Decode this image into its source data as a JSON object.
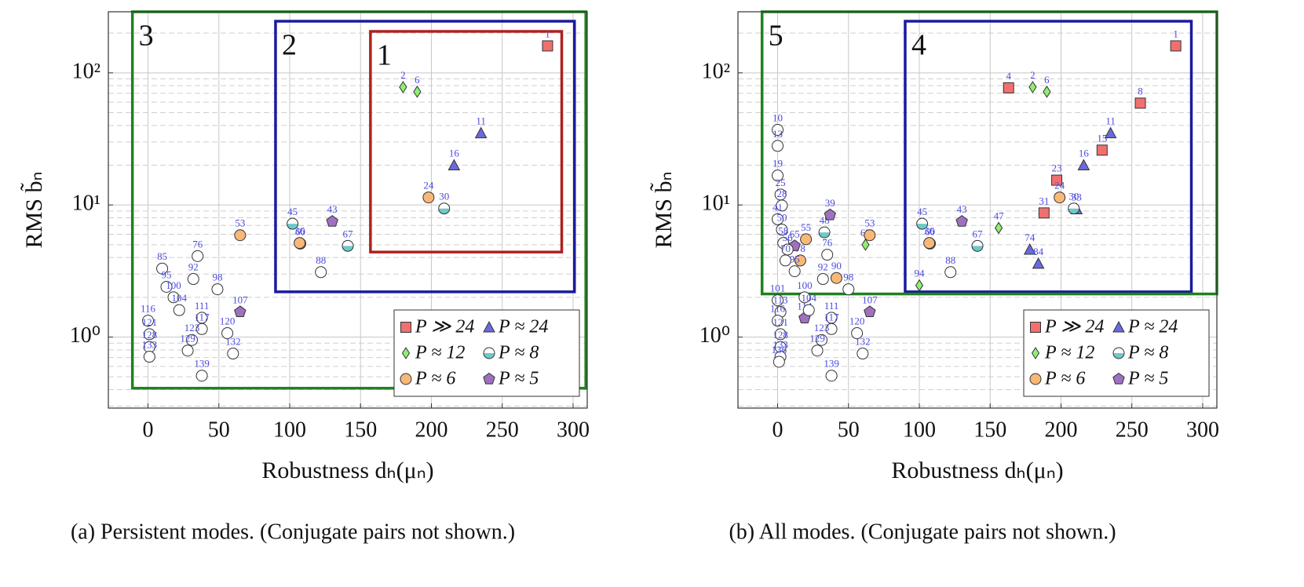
{
  "chart_data": [
    {
      "type": "scatter",
      "caption": "(a) Persistent modes. (Conjugate pairs not shown.)",
      "xlabel": "Robustness dₕ(μₙ)",
      "ylabel": "RMS b̃ₙ",
      "xlim": [
        -28,
        310
      ],
      "ylim": [
        0.29,
        290
      ],
      "log_y": true,
      "grid": true,
      "minor_grid": true,
      "xticks": [
        0,
        50,
        100,
        150,
        200,
        250,
        300
      ],
      "yticks": [
        {
          "value": 1,
          "label": "10⁰"
        },
        {
          "value": 10,
          "label": "10¹"
        },
        {
          "value": 100,
          "label": "10²"
        }
      ],
      "legend": "lower right",
      "regions": [
        {
          "label": "1",
          "color": "#b02020",
          "x": [
            157,
            292
          ],
          "y": [
            4.4,
            206
          ]
        },
        {
          "label": "2",
          "color": "#1a1aa0",
          "x": [
            90,
            301
          ],
          "y": [
            2.2,
            246
          ]
        },
        {
          "label": "3",
          "color": "#208020",
          "x": [
            -11,
            309
          ],
          "y": [
            0.41,
            290
          ]
        }
      ],
      "series": [
        {
          "name": "P ≫ 24",
          "color": "#f07070",
          "marker": "square",
          "x": [
            282
          ],
          "values": [
            160
          ],
          "point_labels": [
            1
          ]
        },
        {
          "name": "P ≈ 24",
          "color": "#6a6ae0",
          "marker": "triangle",
          "x": [
            235,
            216
          ],
          "values": [
            35,
            20
          ],
          "point_labels": [
            11,
            16
          ]
        },
        {
          "name": "P ≈ 12",
          "color": "#90ee70",
          "marker": "diamond",
          "x": [
            180,
            190
          ],
          "values": [
            78,
            72
          ],
          "point_labels": [
            2,
            6
          ]
        },
        {
          "name": "P ≈ 8",
          "color": "#70c8c8",
          "marker": "half-circle",
          "x": [
            209,
            102,
            107.5,
            141
          ],
          "values": [
            9.4,
            7.2,
            5.1,
            4.9
          ],
          "point_labels": [
            30,
            45,
            60,
            67
          ]
        },
        {
          "name": "P ≈ 6",
          "color": "#f8b878",
          "marker": "circle",
          "x": [
            198,
            65,
            107
          ],
          "values": [
            11.4,
            5.9,
            5.15
          ],
          "point_labels": [
            24,
            53,
            36
          ]
        },
        {
          "name": "P ≈ 5",
          "color": "#a070c0",
          "marker": "pentagon",
          "x": [
            130,
            65
          ],
          "values": [
            7.5,
            1.55
          ],
          "point_labels": [
            43,
            107
          ]
        },
        {
          "color": "#ffffff",
          "marker": "circle",
          "x": [
            10,
            35,
            32,
            49,
            122,
            13,
            18,
            22,
            38,
            38,
            0,
            1,
            56,
            31,
            1,
            28,
            60,
            1,
            38
          ],
          "values": [
            3.3,
            4.1,
            2.75,
            2.3,
            3.1,
            2.4,
            2.0,
            1.6,
            1.4,
            1.15,
            1.33,
            1.05,
            1.07,
            0.95,
            0.84,
            0.79,
            0.75,
            0.71,
            0.51
          ],
          "point_labels": [
            85,
            76,
            92,
            98,
            88,
            95,
            100,
            104,
            111,
            117,
            116,
            121,
            120,
            123,
            128,
            129,
            132,
            133,
            139
          ]
        }
      ]
    },
    {
      "type": "scatter",
      "caption": "(b) All modes. (Conjugate pairs not shown.)",
      "xlabel": "Robustness dₕ(μₙ)",
      "ylabel": "RMS b̃ₙ",
      "xlim": [
        -28,
        310
      ],
      "ylim": [
        0.29,
        290
      ],
      "log_y": true,
      "grid": true,
      "minor_grid": true,
      "xticks": [
        0,
        50,
        100,
        150,
        200,
        250,
        300
      ],
      "yticks": [
        {
          "value": 1,
          "label": "10⁰"
        },
        {
          "value": 10,
          "label": "10¹"
        },
        {
          "value": 100,
          "label": "10²"
        }
      ],
      "legend": "lower right",
      "regions": [
        {
          "label": "4",
          "color": "#1a1aa0",
          "x": [
            90,
            292
          ],
          "y": [
            2.2,
            246
          ]
        },
        {
          "label": "5",
          "color": "#208020",
          "x": [
            -11,
            310
          ],
          "y": [
            2.12,
            290
          ]
        }
      ],
      "series": [
        {
          "name": "P ≫ 24",
          "color": "#f07070",
          "marker": "square",
          "x": [
            281,
            163,
            256,
            229,
            197,
            188
          ],
          "values": [
            160,
            77,
            59,
            26,
            15.4,
            8.7
          ],
          "point_labels": [
            1,
            4,
            8,
            15,
            23,
            31
          ]
        },
        {
          "name": "P ≈ 24",
          "color": "#6a6ae0",
          "marker": "triangle",
          "x": [
            235,
            216,
            211,
            178,
            184
          ],
          "values": [
            35,
            20,
            9.3,
            4.6,
            3.6
          ],
          "point_labels": [
            11,
            16,
            33,
            74,
            84
          ]
        },
        {
          "name": "P ≈ 12",
          "color": "#90ee70",
          "marker": "diamond",
          "x": [
            180,
            190,
            156,
            62,
            100
          ],
          "values": [
            78,
            72,
            6.7,
            5.0,
            2.46
          ],
          "point_labels": [
            2,
            6,
            47,
            62,
            94
          ]
        },
        {
          "name": "P ≈ 8",
          "color": "#70c8c8",
          "marker": "half-circle",
          "x": [
            209,
            102,
            107.5,
            141,
            33
          ],
          "values": [
            9.4,
            7.2,
            5.1,
            4.9,
            6.2
          ],
          "point_labels": [
            30,
            45,
            60,
            67,
            48
          ]
        },
        {
          "name": "P ≈ 6",
          "color": "#f8b878",
          "marker": "circle",
          "x": [
            199,
            65,
            107,
            20,
            16,
            41.5
          ],
          "values": [
            11.4,
            5.9,
            5.15,
            5.5,
            3.8,
            2.8
          ],
          "point_labels": [
            24,
            53,
            36,
            55,
            78,
            90
          ]
        },
        {
          "name": "P ≈ 5",
          "color": "#a070c0",
          "marker": "pentagon",
          "x": [
            37,
            130,
            65,
            19,
            12
          ],
          "values": [
            8.4,
            7.5,
            1.55,
            1.39,
            4.9
          ],
          "point_labels": [
            39,
            43,
            107,
            114,
            65
          ]
        },
        {
          "color": "#ffffff",
          "marker": "circle",
          "x": [
            0,
            0,
            0,
            2,
            3,
            0,
            3,
            4,
            7,
            5.5,
            12,
            35,
            32,
            50,
            122,
            19,
            0,
            22,
            38,
            38,
            2,
            0,
            56,
            2,
            31,
            2,
            28,
            60,
            2,
            1,
            38
          ],
          "values": [
            37,
            28,
            16.7,
            12,
            9.9,
            7.8,
            6.5,
            5.15,
            4.6,
            3.8,
            3.15,
            4.2,
            2.75,
            2.3,
            3.1,
            2.0,
            1.9,
            1.6,
            1.4,
            1.15,
            1.55,
            1.33,
            1.07,
            1.05,
            0.95,
            0.84,
            0.79,
            0.75,
            0.71,
            0.65,
            0.51
          ],
          "point_labels": [
            10,
            13,
            19,
            25,
            28,
            41,
            50,
            58,
            56,
            70,
            95,
            76,
            92,
            98,
            88,
            100,
            101,
            104,
            111,
            117,
            113,
            116,
            120,
            121,
            123,
            128,
            129,
            132,
            133,
            136,
            139
          ]
        }
      ]
    }
  ]
}
